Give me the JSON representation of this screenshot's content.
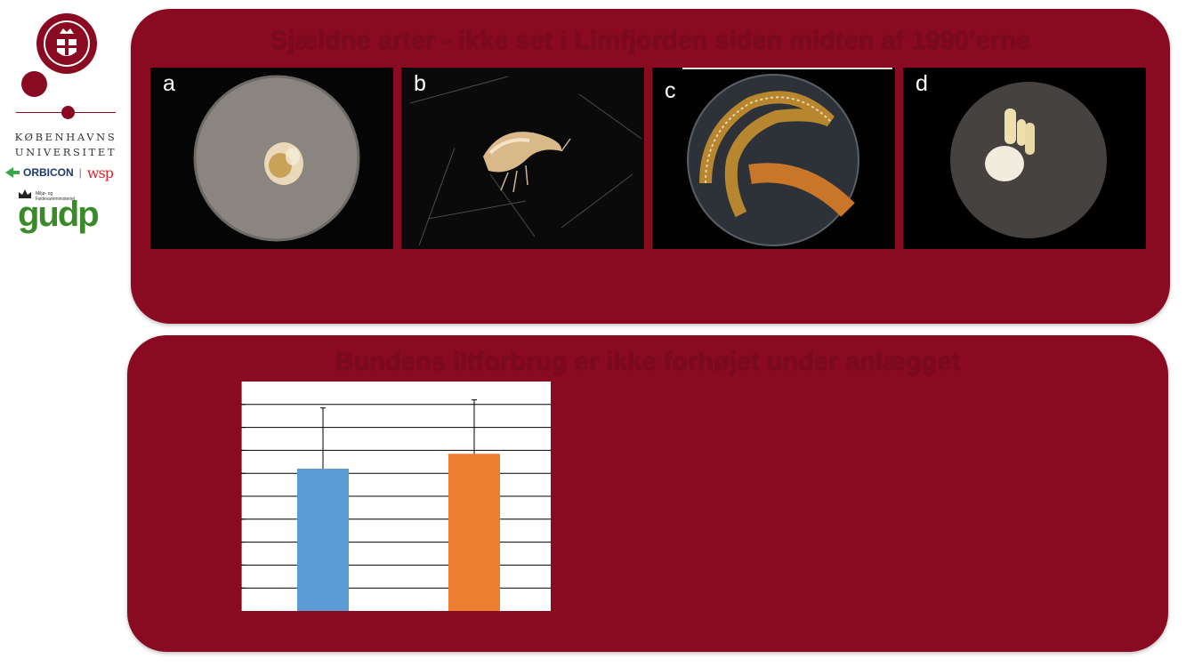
{
  "sidebar": {
    "university_line1": "KØBENHAVNS",
    "university_line2": "UNIVERSITET",
    "partner1": "ORBICON",
    "partner_sep": "|",
    "partner2": "wsp",
    "ministry_line1": "Miljø- og",
    "ministry_line2": "Fødevareministeriet",
    "program": "gudp"
  },
  "top_panel": {
    "title": "Sjældne arter - ikke set i Limfjorden siden midten af 1990’erne",
    "photos": [
      {
        "label": "a"
      },
      {
        "label": "b"
      },
      {
        "label": "c"
      },
      {
        "label": "d"
      }
    ]
  },
  "bottom_panel": {
    "title": "Bundens iltforbrug er ikke forhøjet under anlægget"
  },
  "colors": {
    "panel": "#8a0a22",
    "title_text": "#7a0a1f",
    "bar1": "#5b9bd5",
    "bar2": "#ed7d31"
  },
  "chart_data": {
    "type": "bar",
    "categories": [
      "",
      ""
    ],
    "values": [
      6.2,
      6.85
    ],
    "errors": [
      2.65,
      2.35
    ],
    "ylim": [
      0,
      10
    ],
    "ygrid_lines": 10,
    "grid": true,
    "title": "",
    "xlabel": "",
    "ylabel": ""
  }
}
